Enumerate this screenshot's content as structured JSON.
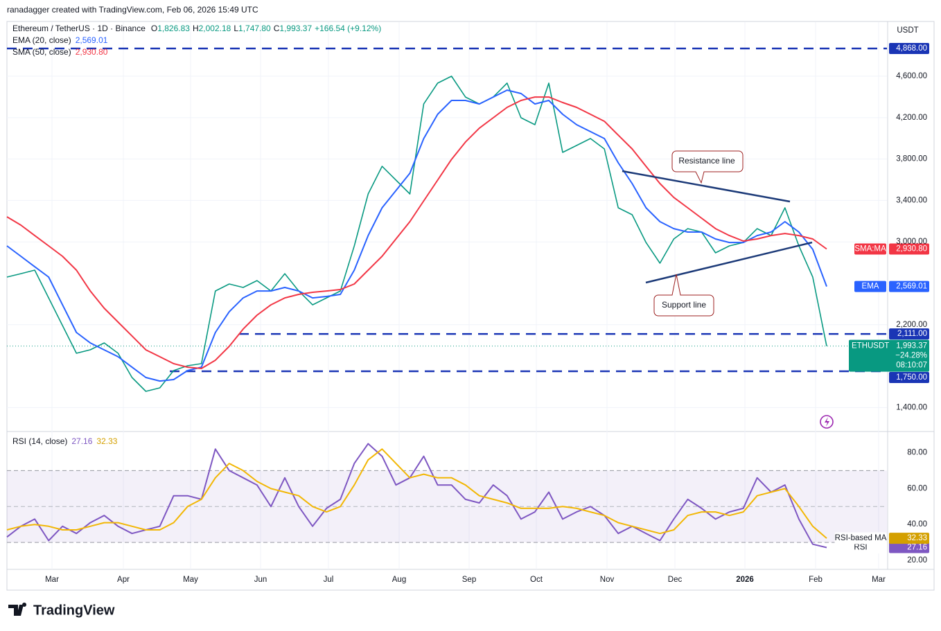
{
  "header": "ranadagger created with TradingView.com, Feb 06, 2026 15:49 UTC",
  "brand": "TradingView",
  "chart_data": [
    {
      "type": "line",
      "title": "Ethereum / TetherUS · 1D · Binance",
      "ohlc": [
        {
          "label": "O",
          "value": "1,826.83"
        },
        {
          "label": "H",
          "value": "2,002.18"
        },
        {
          "label": "L",
          "value": "1,747.80"
        },
        {
          "label": "C",
          "value": "1,993.37"
        }
      ],
      "change": "+166.54 (+9.12%)",
      "currency": "USDT",
      "ylim": [
        1175,
        5122
      ],
      "yticks": [
        {
          "value": 1400,
          "label": "1,400.00"
        },
        {
          "value": 2200,
          "label": "2,200.00"
        },
        {
          "value": 3000,
          "label": "3,000.00"
        },
        {
          "value": 3400,
          "label": "3,400.00"
        },
        {
          "value": 3800,
          "label": "3,800.00"
        },
        {
          "value": 4200,
          "label": "4,200.00"
        },
        {
          "value": 4600,
          "label": "4,600.00"
        }
      ],
      "grid": true,
      "series": [
        {
          "name": "ETHUSDT",
          "color": "#089981",
          "values": [
            2660,
            2693,
            2727,
            2459,
            2192,
            1924,
            1958,
            2024,
            1924,
            1690,
            1556,
            1590,
            1757,
            1804,
            1824,
            2526,
            2593,
            2560,
            2626,
            2526,
            2693,
            2526,
            2392,
            2459,
            2526,
            2961,
            3463,
            3730,
            3597,
            3463,
            4332,
            4533,
            4600,
            4399,
            4332,
            4399,
            4533,
            4199,
            4132,
            4533,
            3864,
            3931,
            3998,
            3898,
            3329,
            3262,
            2994,
            2794,
            3028,
            3128,
            3095,
            2894,
            2961,
            2994,
            3128,
            3061,
            3329,
            2961,
            2660,
            1993.37
          ],
          "last_label": "1,993.37",
          "change_label": "−24.28%",
          "countdown": "08:10:07"
        },
        {
          "name": "EMA (20, close)",
          "tag": "EMA",
          "color": "#2962ff",
          "values": [
            2961,
            2861,
            2760,
            2660,
            2392,
            2125,
            2024,
            1957,
            1891,
            1790,
            1690,
            1656,
            1670,
            1757,
            1790,
            2125,
            2325,
            2459,
            2526,
            2526,
            2560,
            2526,
            2459,
            2473,
            2493,
            2727,
            3061,
            3329,
            3496,
            3663,
            3998,
            4232,
            4366,
            4366,
            4332,
            4399,
            4466,
            4433,
            4332,
            4366,
            4232,
            4132,
            4065,
            3998,
            3764,
            3563,
            3329,
            3195,
            3128,
            3095,
            3095,
            3028,
            2994,
            2994,
            3061,
            3095,
            3195,
            3095,
            2928,
            2569.01
          ],
          "last_label": "2,569.01"
        },
        {
          "name": "SMA (50, close)",
          "tag": "SMA:MA",
          "color": "#f23645",
          "values": [
            3242,
            3162,
            3061,
            2961,
            2861,
            2727,
            2526,
            2359,
            2225,
            2091,
            1957,
            1891,
            1824,
            1790,
            1777,
            1857,
            1991,
            2158,
            2292,
            2392,
            2459,
            2493,
            2513,
            2526,
            2540,
            2593,
            2727,
            2861,
            3028,
            3195,
            3396,
            3597,
            3797,
            3964,
            4098,
            4199,
            4299,
            4366,
            4399,
            4399,
            4346,
            4299,
            4232,
            4165,
            4031,
            3898,
            3730,
            3563,
            3429,
            3329,
            3229,
            3128,
            3061,
            3008,
            3028,
            3061,
            3081,
            3061,
            3028,
            2930.8
          ],
          "last_label": "2,930.80"
        }
      ],
      "levels": [
        {
          "value": 4868,
          "label": "4,868.00"
        },
        {
          "value": 2111,
          "label": "2,111.00"
        },
        {
          "value": 1750,
          "label": "1,750.00"
        }
      ],
      "level_color": "#1a35b5",
      "annotations": [
        "Resistance line",
        "Support line"
      ]
    },
    {
      "type": "line",
      "title": "RSI (14, close)",
      "ylim": [
        15,
        91
      ],
      "yticks": [
        {
          "value": 20,
          "label": "20.00"
        },
        {
          "value": 40,
          "label": "40.00"
        },
        {
          "value": 60,
          "label": "60.00"
        },
        {
          "value": 80,
          "label": "80.00"
        }
      ],
      "band": [
        30,
        70
      ],
      "midline": 50,
      "series": [
        {
          "name": "RSI",
          "color": "#7e57c2",
          "values": [
            33,
            39,
            43,
            31,
            39,
            35,
            41,
            45,
            39,
            35,
            37,
            39,
            56,
            56,
            54,
            82,
            70,
            66,
            62,
            50,
            66,
            50,
            39,
            49,
            54,
            74,
            85,
            78,
            62,
            66,
            78,
            62,
            62,
            54,
            52,
            62,
            56,
            43,
            47,
            58,
            43,
            47,
            50,
            45,
            35,
            39,
            35,
            31,
            43,
            54,
            49,
            43,
            47,
            49,
            66,
            58,
            62,
            43,
            29,
            27.16
          ],
          "last_label": "27.16"
        },
        {
          "name": "RSI-based MA",
          "color": "#f2b705",
          "values": [
            37,
            39,
            40,
            39,
            37,
            37,
            39,
            41,
            41,
            39,
            37,
            37,
            41,
            50,
            54,
            66,
            74,
            70,
            64,
            60,
            58,
            56,
            50,
            47,
            50,
            62,
            76,
            82,
            74,
            66,
            68,
            66,
            66,
            62,
            56,
            54,
            52,
            49,
            49,
            49,
            50,
            49,
            47,
            45,
            41,
            39,
            37,
            35,
            37,
            45,
            47,
            47,
            45,
            47,
            56,
            58,
            60,
            50,
            39,
            32.33
          ],
          "last_label": "32.33"
        }
      ],
      "x_labels": [
        "Mar",
        "Apr",
        "May",
        "Jun",
        "Jul",
        "Aug",
        "Sep",
        "Oct",
        "Nov",
        "Dec",
        "2026",
        "Feb",
        "Mar"
      ]
    }
  ]
}
